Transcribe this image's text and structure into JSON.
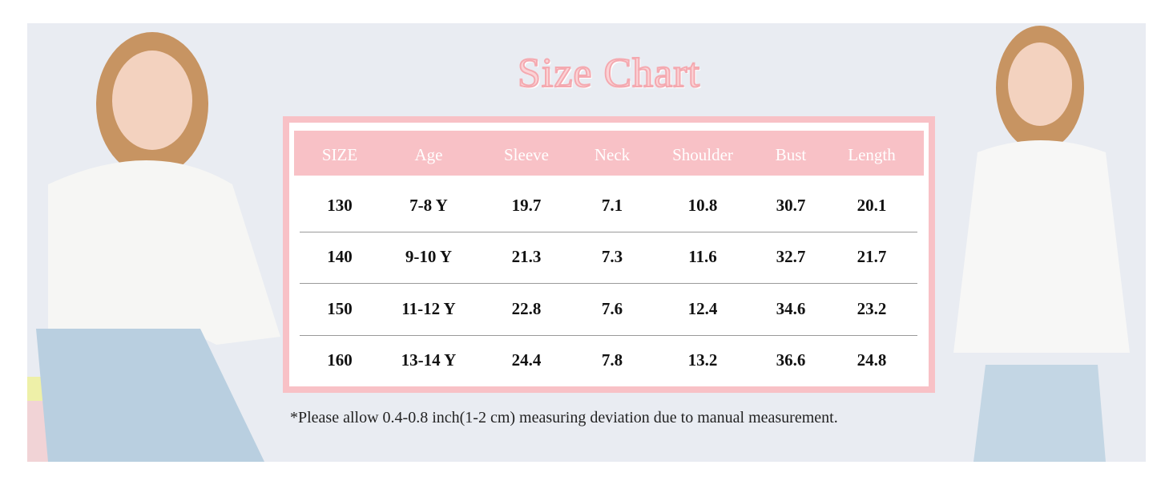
{
  "title": "Size Chart",
  "table": {
    "header": [
      "SIZE",
      "Age",
      "Sleeve",
      "Neck",
      "Shoulder",
      "Bust",
      "Length"
    ],
    "rows": [
      [
        "130",
        "7-8 Y",
        "19.7",
        "7.1",
        "10.8",
        "30.7",
        "20.1"
      ],
      [
        "140",
        "9-10 Y",
        "21.3",
        "7.3",
        "11.6",
        "32.7",
        "21.7"
      ],
      [
        "150",
        "11-12 Y",
        "22.8",
        "7.6",
        "12.4",
        "34.6",
        "23.2"
      ],
      [
        "160",
        "13-14 Y",
        "24.4",
        "7.8",
        "13.2",
        "36.6",
        "24.8"
      ]
    ]
  },
  "note": "*Please allow 0.4-0.8 inch(1-2 cm) measuring deviation due to manual measurement."
}
